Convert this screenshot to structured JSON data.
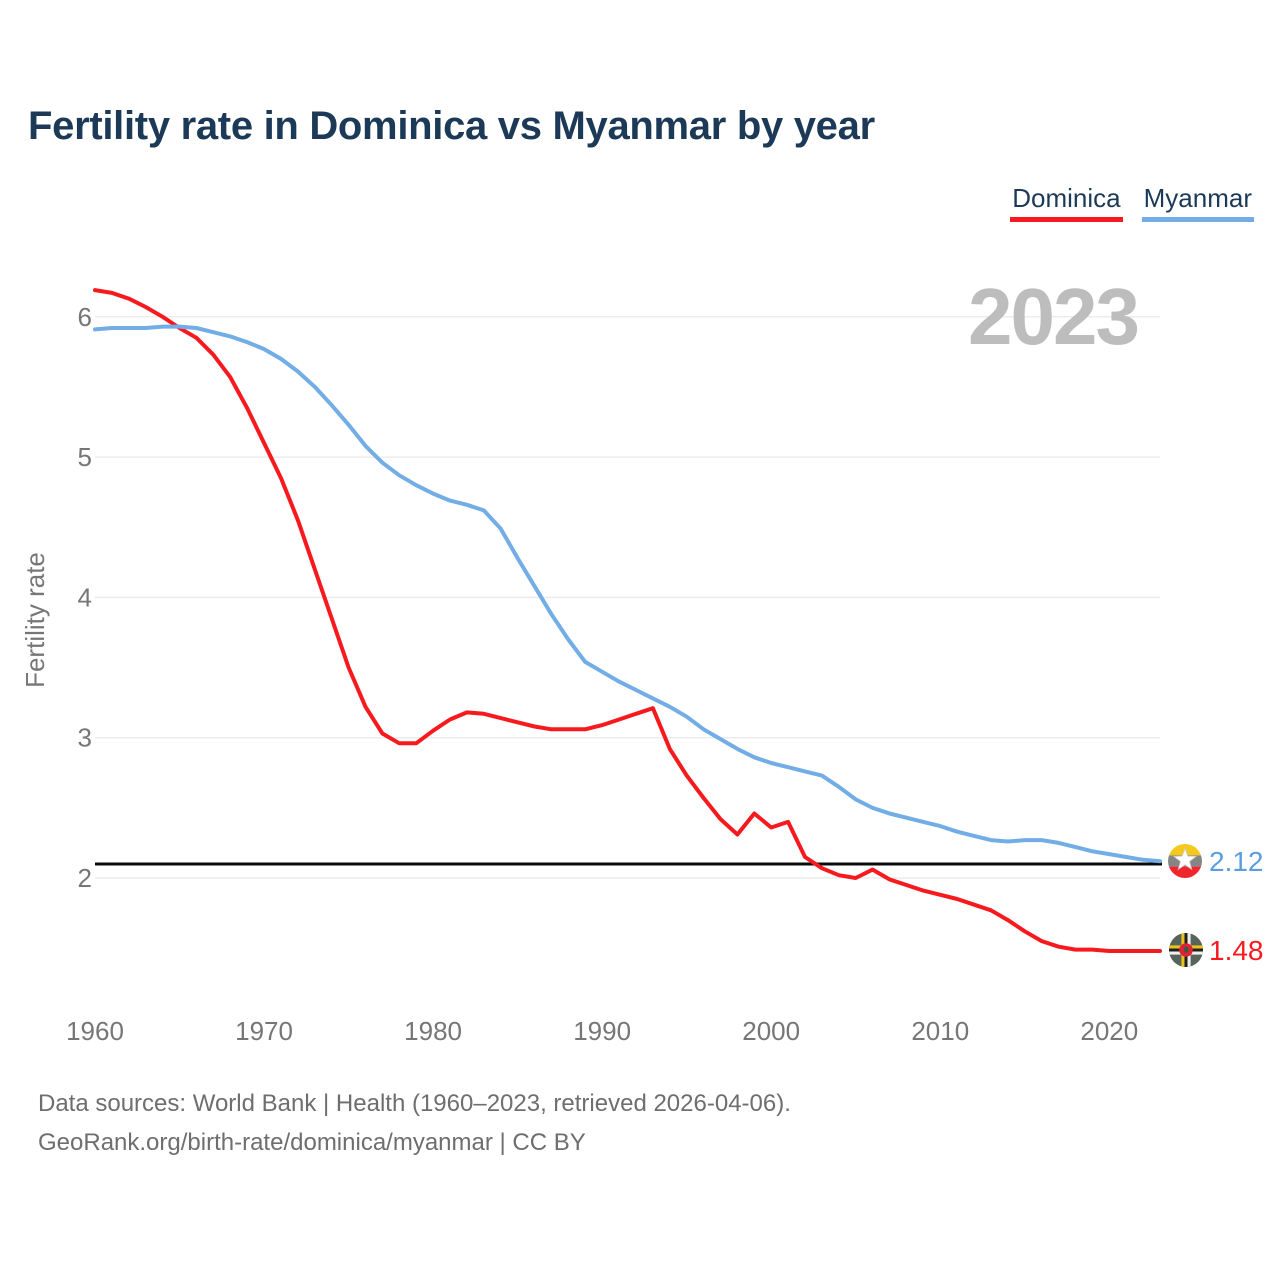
{
  "title": "Fertility rate in Dominica vs Myanmar by year",
  "legend": [
    {
      "label": "Dominica",
      "color": "#f61a1e"
    },
    {
      "label": "Myanmar",
      "color": "#72ade6"
    }
  ],
  "watermark": "2023",
  "y_axis": {
    "label": "Fertility rate",
    "ticks": [
      2,
      3,
      4,
      5,
      6
    ]
  },
  "x_axis": {
    "ticks": [
      1960,
      1970,
      1980,
      1990,
      2000,
      2010,
      2020
    ]
  },
  "reference_line": {
    "value": 2.1,
    "color": "#0a0a0a"
  },
  "end_labels": [
    {
      "series": "Myanmar",
      "value": "2.12",
      "color": "#5b9de0",
      "flag": "myanmar-flag"
    },
    {
      "series": "Dominica",
      "value": "1.48",
      "color": "#f61a1e",
      "flag": "dominica-flag"
    }
  ],
  "footer": {
    "line1": "Data sources: World Bank | Health (1960–2023, retrieved 2026-04-06).",
    "line2": "GeoRank.org/birth-rate/dominica/myanmar | CC BY"
  },
  "colors": {
    "title": "#1c3a57",
    "axis_text": "#767676",
    "gridline": "#ececec",
    "watermark": "#bdbdbd",
    "footer_text": "#6e6e6e",
    "background": "#ffffff"
  },
  "chart_data": {
    "type": "line",
    "x": [
      1960,
      1961,
      1962,
      1963,
      1964,
      1965,
      1966,
      1967,
      1968,
      1969,
      1970,
      1971,
      1972,
      1973,
      1974,
      1975,
      1976,
      1977,
      1978,
      1979,
      1980,
      1981,
      1982,
      1983,
      1984,
      1985,
      1986,
      1987,
      1988,
      1989,
      1990,
      1991,
      1992,
      1993,
      1994,
      1995,
      1996,
      1997,
      1998,
      1999,
      2000,
      2001,
      2002,
      2003,
      2004,
      2005,
      2006,
      2007,
      2008,
      2009,
      2010,
      2011,
      2012,
      2013,
      2014,
      2015,
      2016,
      2017,
      2018,
      2019,
      2020,
      2021,
      2022,
      2023
    ],
    "series": [
      {
        "name": "Dominica",
        "color": "#f61a1e",
        "values": [
          6.19,
          6.17,
          6.13,
          6.07,
          6.0,
          5.92,
          5.85,
          5.73,
          5.57,
          5.35,
          5.1,
          4.85,
          4.55,
          4.2,
          3.85,
          3.5,
          3.22,
          3.03,
          2.96,
          2.96,
          3.05,
          3.13,
          3.18,
          3.17,
          3.14,
          3.11,
          3.08,
          3.06,
          3.06,
          3.06,
          3.09,
          3.13,
          3.17,
          3.21,
          2.92,
          2.73,
          2.57,
          2.42,
          2.31,
          2.46,
          2.36,
          2.4,
          2.15,
          2.07,
          2.02,
          2.0,
          2.06,
          1.99,
          1.95,
          1.91,
          1.88,
          1.85,
          1.81,
          1.77,
          1.7,
          1.62,
          1.55,
          1.51,
          1.49,
          1.49,
          1.48,
          1.48,
          1.48,
          1.48
        ]
      },
      {
        "name": "Myanmar",
        "color": "#72ade6",
        "values": [
          5.91,
          5.92,
          5.92,
          5.92,
          5.93,
          5.93,
          5.92,
          5.89,
          5.86,
          5.82,
          5.77,
          5.7,
          5.61,
          5.5,
          5.37,
          5.23,
          5.08,
          4.96,
          4.87,
          4.8,
          4.74,
          4.69,
          4.66,
          4.62,
          4.49,
          4.28,
          4.08,
          3.88,
          3.7,
          3.54,
          3.47,
          3.4,
          3.34,
          3.28,
          3.22,
          3.15,
          3.06,
          2.99,
          2.92,
          2.86,
          2.82,
          2.79,
          2.76,
          2.73,
          2.65,
          2.56,
          2.5,
          2.46,
          2.43,
          2.4,
          2.37,
          2.33,
          2.3,
          2.27,
          2.26,
          2.27,
          2.27,
          2.25,
          2.22,
          2.19,
          2.17,
          2.15,
          2.13,
          2.12
        ]
      }
    ],
    "title": "Fertility rate in Dominica vs Myanmar by year",
    "xlabel": "",
    "ylabel": "Fertility rate",
    "xlim": [
      1960,
      2023
    ],
    "ylim": [
      1.2,
      6.4
    ],
    "grid": "horizontal-only",
    "legend_position": "top-right",
    "reference_line": 2.1,
    "annotations": [
      "2023 watermark",
      "end value 2.12 Myanmar",
      "end value 1.48 Dominica"
    ]
  }
}
